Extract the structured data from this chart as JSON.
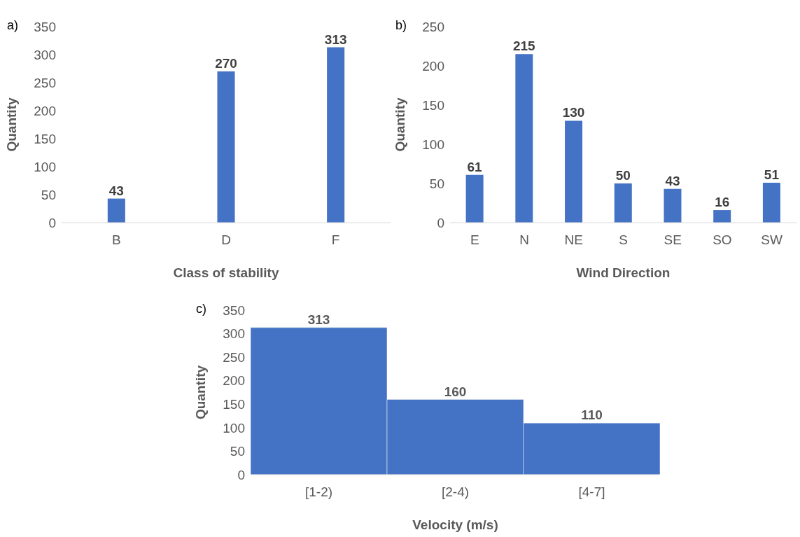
{
  "chart_data": [
    {
      "type": "bar",
      "annotations": [
        "a)"
      ],
      "xlabel": "Class of stability",
      "ylabel": "Quantity",
      "categories": [
        "B",
        "D",
        "F"
      ],
      "values": [
        43,
        270,
        313
      ],
      "color": "#4472c4",
      "ylim": [
        0,
        350
      ],
      "yticks": [
        0,
        50,
        100,
        150,
        200,
        250,
        300,
        350
      ],
      "data_labels": true
    },
    {
      "type": "bar",
      "annotations": [
        "b)"
      ],
      "xlabel": "Wind Direction",
      "ylabel": "Quantity",
      "categories": [
        "E",
        "N",
        "NE",
        "S",
        "SE",
        "SO",
        "SW"
      ],
      "values": [
        61,
        215,
        130,
        50,
        43,
        16,
        51
      ],
      "color": "#4472c4",
      "ylim": [
        0,
        250
      ],
      "yticks": [
        0,
        50,
        100,
        150,
        200,
        250
      ],
      "data_labels": true
    },
    {
      "type": "bar",
      "annotations": [
        "c)"
      ],
      "xlabel": "Velocity (m/s)",
      "ylabel": "Quantity",
      "categories": [
        "[1-2)",
        "[2-4)",
        "[4-7]"
      ],
      "values": [
        313,
        160,
        110
      ],
      "color": "#4472c4",
      "ylim": [
        0,
        350
      ],
      "yticks": [
        0,
        50,
        100,
        150,
        200,
        250,
        300,
        350
      ],
      "data_labels": true
    }
  ]
}
